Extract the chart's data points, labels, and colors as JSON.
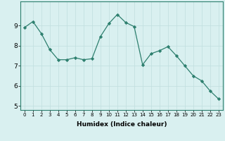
{
  "x": [
    0,
    1,
    2,
    3,
    4,
    5,
    6,
    7,
    8,
    9,
    10,
    11,
    12,
    13,
    14,
    15,
    16,
    17,
    18,
    19,
    20,
    21,
    22,
    23
  ],
  "y": [
    8.9,
    9.2,
    8.6,
    7.8,
    7.3,
    7.3,
    7.4,
    7.3,
    7.35,
    8.45,
    9.1,
    9.55,
    9.15,
    8.95,
    7.05,
    7.6,
    7.75,
    7.95,
    7.5,
    7.0,
    6.5,
    6.25,
    5.75,
    5.35
  ],
  "xlabel": "Humidex (Indice chaleur)",
  "ylabel": "",
  "ylim": [
    4.8,
    10.2
  ],
  "xlim": [
    -0.5,
    23.5
  ],
  "yticks": [
    5,
    6,
    7,
    8,
    9
  ],
  "xticks": [
    0,
    1,
    2,
    3,
    4,
    5,
    6,
    7,
    8,
    9,
    10,
    11,
    12,
    13,
    14,
    15,
    16,
    17,
    18,
    19,
    20,
    21,
    22,
    23
  ],
  "xtick_labels": [
    "0",
    "1",
    "2",
    "3",
    "4",
    "5",
    "6",
    "7",
    "8",
    "9",
    "10",
    "11",
    "12",
    "13",
    "14",
    "15",
    "16",
    "17",
    "18",
    "19",
    "20",
    "21",
    "22",
    "23"
  ],
  "line_color": "#2d7f6e",
  "marker": "D",
  "marker_size": 2.2,
  "bg_color": "#d9f0f0",
  "grid_color": "#c0dede",
  "axis_color": "#2d7f6e",
  "xlabel_fontsize": 6.5,
  "xtick_fontsize": 5.0,
  "ytick_fontsize": 6.5
}
